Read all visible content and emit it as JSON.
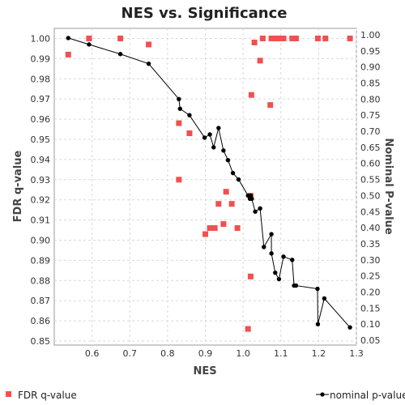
{
  "chart_data": {
    "type": "scatter",
    "title": "NES vs. Significance",
    "xlabel": "NES",
    "ylabel_left": "FDR q-value",
    "ylabel_right": "Nominal P-value",
    "xlim": [
      0.5,
      1.3
    ],
    "ylim_left": [
      0.848,
      1.005
    ],
    "ylim_right": [
      0.035,
      1.02
    ],
    "x_ticks": [
      0.6,
      0.7,
      0.8,
      0.9,
      1.0,
      1.1,
      1.2,
      1.3
    ],
    "y_ticks_left": [
      0.85,
      0.86,
      0.87,
      0.88,
      0.89,
      0.9,
      0.91,
      0.92,
      0.93,
      0.94,
      0.95,
      0.96,
      0.97,
      0.98,
      0.99,
      1.0
    ],
    "y_ticks_right": [
      0.05,
      0.1,
      0.15,
      0.2,
      0.25,
      0.3,
      0.35,
      0.4,
      0.45,
      0.5,
      0.55,
      0.6,
      0.65,
      0.7,
      0.75,
      0.8,
      0.85,
      0.9,
      0.95,
      1.0
    ],
    "grid": true,
    "legend_placement": "bottom",
    "series": [
      {
        "name": "FDR q-value",
        "axis": "left",
        "style": "square",
        "color": "#f05050",
        "points": [
          [
            0.537,
            0.992
          ],
          [
            0.592,
            1.0
          ],
          [
            0.675,
            1.0
          ],
          [
            0.75,
            0.997
          ],
          [
            0.83,
            0.958
          ],
          [
            0.83,
            0.93
          ],
          [
            0.858,
            0.953
          ],
          [
            0.9,
            0.903
          ],
          [
            0.912,
            0.906
          ],
          [
            0.925,
            0.906
          ],
          [
            0.935,
            0.918
          ],
          [
            0.948,
            0.908
          ],
          [
            0.955,
            0.924
          ],
          [
            0.97,
            0.918
          ],
          [
            0.985,
            0.906
          ],
          [
            1.013,
            0.856
          ],
          [
            1.02,
            0.882
          ],
          [
            1.02,
            0.922
          ],
          [
            1.022,
            0.972
          ],
          [
            1.03,
            0.998
          ],
          [
            1.045,
            0.989
          ],
          [
            1.052,
            1.0
          ],
          [
            1.072,
            0.967
          ],
          [
            1.075,
            1.0
          ],
          [
            1.085,
            1.0
          ],
          [
            1.095,
            1.0
          ],
          [
            1.107,
            1.0
          ],
          [
            1.13,
            1.0
          ],
          [
            1.14,
            1.0
          ],
          [
            1.198,
            1.0
          ],
          [
            1.218,
            1.0
          ],
          [
            1.283,
            1.0
          ]
        ]
      },
      {
        "name": "nominal p-value",
        "axis": "right",
        "style": "line-dot",
        "color": "#000000",
        "points": [
          [
            0.537,
            0.99
          ],
          [
            0.592,
            0.97
          ],
          [
            0.675,
            0.94
          ],
          [
            0.75,
            0.91
          ],
          [
            0.83,
            0.8
          ],
          [
            0.833,
            0.77
          ],
          [
            0.858,
            0.75
          ],
          [
            0.898,
            0.68
          ],
          [
            0.912,
            0.69
          ],
          [
            0.922,
            0.65
          ],
          [
            0.935,
            0.71
          ],
          [
            0.948,
            0.64
          ],
          [
            0.96,
            0.61
          ],
          [
            0.973,
            0.57
          ],
          [
            0.988,
            0.55
          ],
          [
            1.013,
            0.5
          ],
          [
            1.018,
            0.49
          ],
          [
            1.02,
            0.5
          ],
          [
            1.023,
            0.49
          ],
          [
            1.032,
            0.45
          ],
          [
            1.045,
            0.46
          ],
          [
            1.055,
            0.34
          ],
          [
            1.075,
            0.38
          ],
          [
            1.075,
            0.32
          ],
          [
            1.085,
            0.26
          ],
          [
            1.095,
            0.24
          ],
          [
            1.107,
            0.31
          ],
          [
            1.13,
            0.3
          ],
          [
            1.135,
            0.22
          ],
          [
            1.14,
            0.22
          ],
          [
            1.197,
            0.21
          ],
          [
            1.198,
            0.1
          ],
          [
            1.215,
            0.18
          ],
          [
            1.283,
            0.09
          ]
        ]
      }
    ]
  },
  "legend": {
    "fdr_label": "FDR q-value",
    "nominal_label": "nominal p-value"
  }
}
